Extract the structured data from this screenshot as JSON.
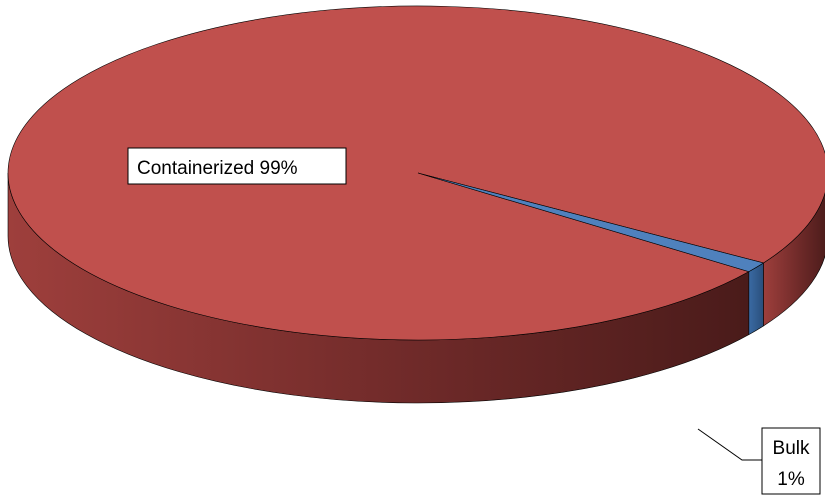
{
  "chart_data": {
    "type": "pie",
    "style": "3d",
    "categories": [
      "Containerized",
      "Bulk"
    ],
    "values": [
      99,
      1
    ],
    "colors": [
      "#c0504d",
      "#4f81bd"
    ],
    "labels": [
      "Containerized 99%",
      "Bulk 1%"
    ],
    "label_texts": {
      "containerized": "Containerized 99%",
      "bulk_name": "Bulk",
      "bulk_value": "1%"
    }
  }
}
